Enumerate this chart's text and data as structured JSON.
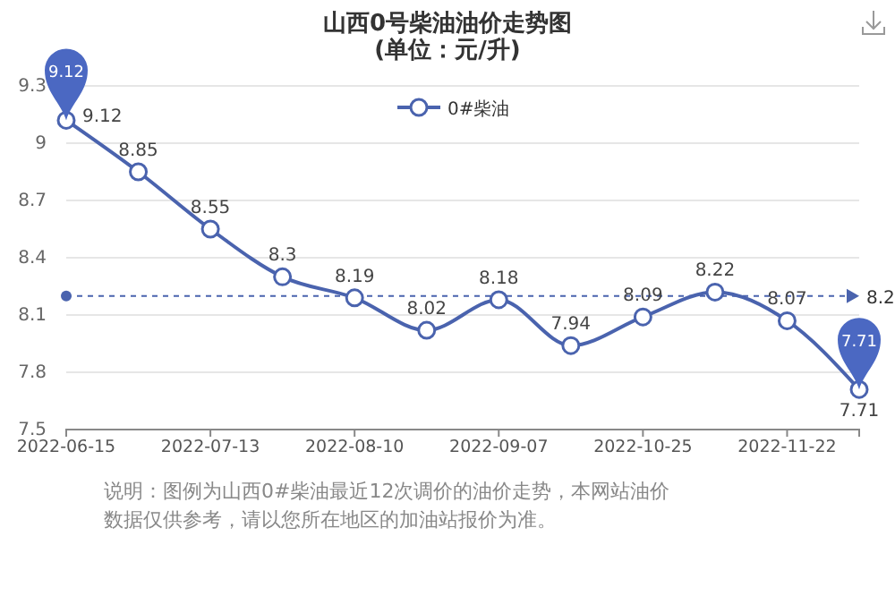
{
  "chart_data": {
    "type": "line",
    "title": "山西0号柴油油价走势图",
    "subtitle": "(单位：元/升)",
    "categories": [
      "2022-06-15",
      null,
      "2022-07-13",
      null,
      "2022-08-10",
      null,
      "2022-09-07",
      null,
      "2022-10-25",
      null,
      "2022-11-22",
      null
    ],
    "series": [
      {
        "name": "0#柴油",
        "color": "#4a63ae",
        "values": [
          9.12,
          8.85,
          8.55,
          8.3,
          8.19,
          8.02,
          8.18,
          7.94,
          8.09,
          8.22,
          8.07,
          7.71
        ]
      }
    ],
    "ylim": [
      7.5,
      9.3
    ],
    "yticks": [
      7.5,
      7.8,
      8.1,
      8.4,
      8.7,
      9,
      9.3
    ],
    "grid": "y",
    "legend": "top",
    "marker": "circle",
    "data_labels": true,
    "ref_lines": [
      {
        "axis": "y",
        "value": 8.2,
        "label": "8.2",
        "color": "#4a63ae",
        "line_style": "dashed"
      }
    ],
    "annotations": [
      {
        "text": "9.12",
        "x": "2022-06-15",
        "y": 9.12
      },
      {
        "text": "7.71",
        "y": 7.71
      },
      "说明：图例为山西0#柴油最近12次调价的油价走势，本网站油价数据仅供参考，请以您所在地区的加油站报价为准。"
    ]
  }
}
